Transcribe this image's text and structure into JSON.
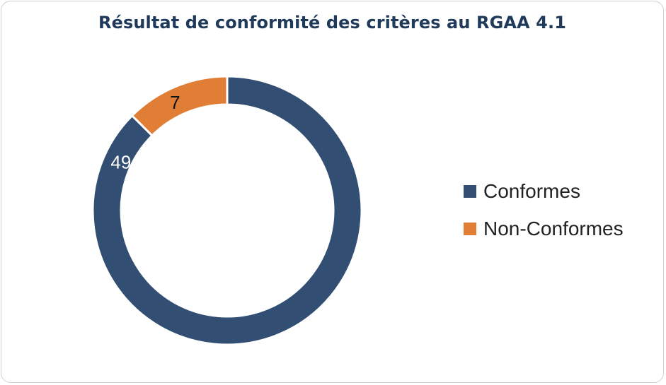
{
  "chart_data": {
    "type": "pie",
    "donut": true,
    "title": "Résultat de conformité des critères au RGAA 4.1",
    "categories": [
      "Conformes",
      "Non-Conformes"
    ],
    "values": [
      49,
      7
    ],
    "colors": [
      "#324f73",
      "#e07e35"
    ],
    "label_colors": [
      "#ffffff",
      "#111111"
    ],
    "legend_position": "right"
  }
}
